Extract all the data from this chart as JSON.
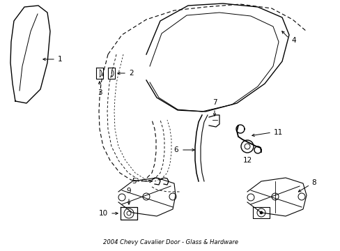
{
  "title": "2004 Chevy Cavalier Door - Glass & Hardware",
  "bg_color": "#ffffff",
  "line_color": "#000000",
  "lw": 1.0,
  "dlw": 0.8,
  "figsize": [
    4.89,
    3.6
  ],
  "dpi": 100
}
